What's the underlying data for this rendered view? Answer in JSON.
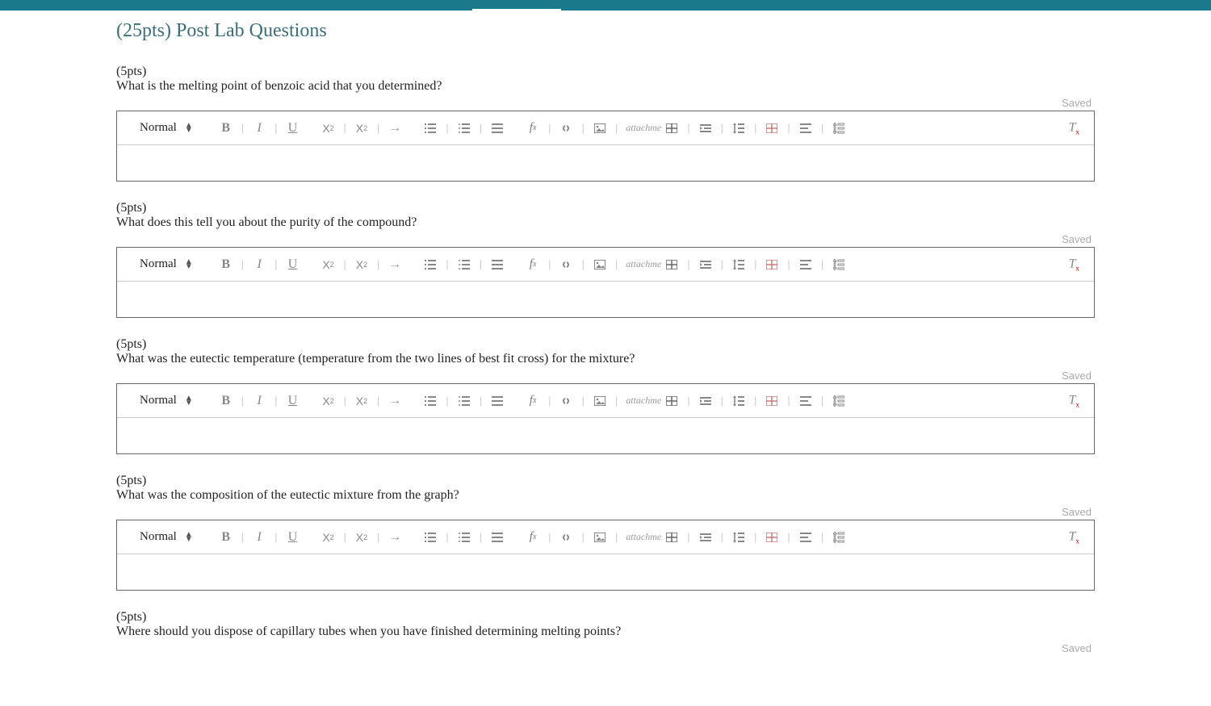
{
  "section": {
    "title": "(25pts) Post Lab Questions"
  },
  "toolbar": {
    "format_label": "Normal",
    "attach_label": "attachme",
    "fx_label": "f",
    "fx_sub": "x",
    "clear_label": "T",
    "clear_x": "x"
  },
  "saved_label": "Saved",
  "questions": [
    {
      "points": "(5pts)",
      "text": "What is the melting point of benzoic acid that you determined?"
    },
    {
      "points": "(5pts)",
      "text": "What does this tell you about the purity of the compound?"
    },
    {
      "points": "(5pts)",
      "text": "What was the eutectic temperature (temperature from the two lines of best fit cross) for the mixture?"
    },
    {
      "points": "(5pts)",
      "text": "What was the composition of the eutectic mixture from the graph?"
    },
    {
      "points": "(5pts)",
      "text": "Where should you dispose of capillary tubes when you have finished determining melting points?"
    }
  ],
  "colors": {
    "header_bar": "#1a7a8c",
    "title": "#3b6f7a",
    "saved_text": "#aaaaaa",
    "toolbar_icon": "#888888",
    "editor_border": "#666666"
  }
}
